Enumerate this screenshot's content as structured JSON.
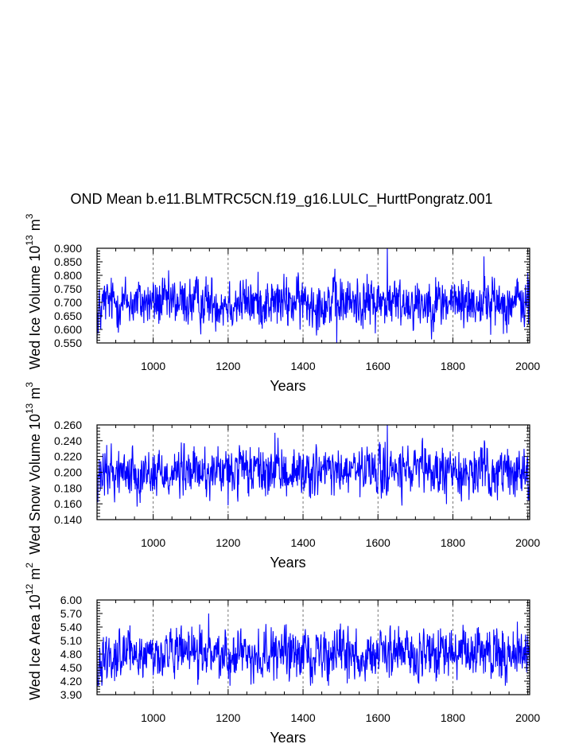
{
  "title": "OND Mean b.e11.BLMTRC5CN.f19_g16.LULC_HurttPongratz.001",
  "chart_data": [
    {
      "type": "line",
      "ylabel": "Wed Ice Volume 10^13 m^3",
      "ylabel_main": "Wed Ice Volume 10",
      "ylabel_exp": "13",
      "ylabel_unit": "m",
      "ylabel_unit_exp": "3",
      "xlabel": "Years",
      "xlim": [
        850,
        2005
      ],
      "ylim": [
        0.55,
        0.9
      ],
      "yticks": [
        "0.550",
        "0.600",
        "0.650",
        "0.700",
        "0.750",
        "0.800",
        "0.850",
        "0.900"
      ],
      "ytick_values": [
        0.55,
        0.6,
        0.65,
        0.7,
        0.75,
        0.8,
        0.85,
        0.9
      ],
      "xticks": [
        "1000",
        "1200",
        "1400",
        "1600",
        "1800",
        "2000"
      ],
      "xtick_values": [
        1000,
        1200,
        1400,
        1600,
        1800,
        2000
      ],
      "grid": "x-dashed",
      "series": [
        {
          "name": "OND mean",
          "color": "#0000ff",
          "mean": 0.7,
          "spread": 0.045,
          "min": 0.55,
          "max": 0.9,
          "peaks": [
            [
              1625,
              0.9
            ],
            [
              1883,
              0.87
            ],
            [
              1490,
              0.55
            ],
            [
              853,
              0.585
            ]
          ]
        }
      ]
    },
    {
      "type": "line",
      "ylabel": "Wed Snow Volume 10^13 m^3",
      "ylabel_main": "Wed Snow Volume 10",
      "ylabel_exp": "13",
      "ylabel_unit": "m",
      "ylabel_unit_exp": "3",
      "xlabel": "Years",
      "xlim": [
        850,
        2005
      ],
      "ylim": [
        0.14,
        0.26
      ],
      "yticks": [
        "0.140",
        "0.160",
        "0.180",
        "0.200",
        "0.220",
        "0.240",
        "0.260"
      ],
      "ytick_values": [
        0.14,
        0.16,
        0.18,
        0.2,
        0.22,
        0.24,
        0.26
      ],
      "xticks": [
        "1000",
        "1200",
        "1400",
        "1600",
        "1800",
        "2000"
      ],
      "xtick_values": [
        1000,
        1200,
        1400,
        1600,
        1800,
        2000
      ],
      "grid": "x-dashed",
      "series": [
        {
          "name": "OND mean",
          "color": "#0000ff",
          "mean": 0.2,
          "spread": 0.015,
          "min": 0.155,
          "max": 0.26,
          "peaks": [
            [
              1625,
              0.26
            ],
            [
              1325,
              0.25
            ],
            [
              852,
              0.162
            ],
            [
              1200,
              0.158
            ]
          ]
        }
      ]
    },
    {
      "type": "line",
      "ylabel": "Wed Ice Area 10^12 m^2",
      "ylabel_main": "Wed Ice Area 10",
      "ylabel_exp": "12",
      "ylabel_unit": "m",
      "ylabel_unit_exp": "2",
      "xlabel": "Years",
      "xlim": [
        850,
        2005
      ],
      "ylim": [
        3.9,
        6.0
      ],
      "yticks": [
        "3.90",
        "4.20",
        "4.50",
        "4.80",
        "5.10",
        "5.40",
        "5.70",
        "6.00"
      ],
      "ytick_values": [
        3.9,
        4.2,
        4.5,
        4.8,
        5.1,
        5.4,
        5.7,
        6.0
      ],
      "xticks": [
        "1000",
        "1200",
        "1400",
        "1600",
        "1800",
        "2000"
      ],
      "xtick_values": [
        1000,
        1200,
        1400,
        1600,
        1800,
        2000
      ],
      "grid": "x-dashed",
      "series": [
        {
          "name": "OND mean",
          "color": "#0000ff",
          "mean": 4.8,
          "spread": 0.26,
          "min": 4.1,
          "max": 5.7,
          "peaks": [
            [
              1148,
              5.7
            ],
            [
              1972,
              5.52
            ],
            [
              1205,
              4.1
            ],
            [
              1940,
              4.1
            ]
          ]
        }
      ]
    }
  ]
}
